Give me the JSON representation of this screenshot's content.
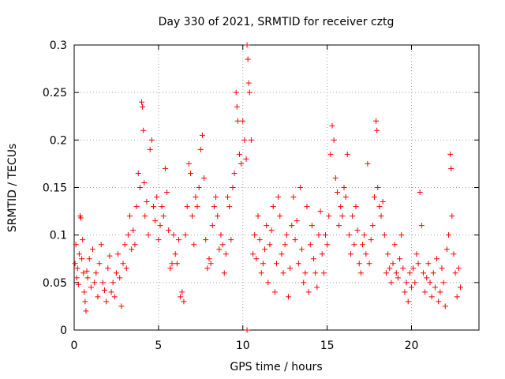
{
  "chart_data": {
    "type": "scatter",
    "title": "Day 330 of 2021, SRMTID for receiver cztg",
    "xlabel": "GPS time / hours",
    "ylabel": "SRMTID / TECUs",
    "xlim": [
      0,
      24
    ],
    "ylim": [
      0,
      0.3
    ],
    "xticks": [
      0,
      5,
      10,
      15,
      20
    ],
    "xtick_labels": [
      "0",
      "5",
      "10",
      "15",
      "20"
    ],
    "yticks": [
      0,
      0.05,
      0.1,
      0.15,
      0.2,
      0.25,
      0.3
    ],
    "ytick_labels": [
      "0",
      "0.05",
      "0.1",
      "0.15",
      "0.2",
      "0.25",
      "0.3"
    ],
    "grid": true,
    "marker": "plus",
    "color": "#ff0000",
    "series": [
      {
        "name": "SRMTID",
        "points": [
          [
            0.05,
            0.07
          ],
          [
            0.1,
            0.09
          ],
          [
            0.15,
            0.055
          ],
          [
            0.2,
            0.065
          ],
          [
            0.25,
            0.048
          ],
          [
            0.3,
            0.08
          ],
          [
            0.35,
            0.12
          ],
          [
            0.4,
            0.118
          ],
          [
            0.45,
            0.075
          ],
          [
            0.5,
            0.095
          ],
          [
            0.55,
            0.06
          ],
          [
            0.6,
            0.04
          ],
          [
            0.65,
            0.03
          ],
          [
            0.7,
            0.02
          ],
          [
            0.75,
            0.062
          ],
          [
            0.8,
            0.055
          ],
          [
            0.9,
            0.075
          ],
          [
            1.0,
            0.045
          ],
          [
            1.1,
            0.085
          ],
          [
            1.2,
            0.05
          ],
          [
            1.3,
            0.06
          ],
          [
            1.4,
            0.035
          ],
          [
            1.5,
            0.07
          ],
          [
            1.6,
            0.09
          ],
          [
            1.7,
            0.05
          ],
          [
            1.8,
            0.042
          ],
          [
            1.9,
            0.03
          ],
          [
            2.0,
            0.065
          ],
          [
            2.1,
            0.078
          ],
          [
            2.2,
            0.04
          ],
          [
            2.3,
            0.05
          ],
          [
            2.4,
            0.035
          ],
          [
            2.5,
            0.06
          ],
          [
            2.6,
            0.08
          ],
          [
            2.7,
            0.055
          ],
          [
            2.8,
            0.025
          ],
          [
            2.9,
            0.07
          ],
          [
            3.0,
            0.09
          ],
          [
            3.1,
            0.065
          ],
          [
            3.2,
            0.1
          ],
          [
            3.3,
            0.12
          ],
          [
            3.4,
            0.085
          ],
          [
            3.5,
            0.105
          ],
          [
            3.6,
            0.09
          ],
          [
            3.7,
            0.13
          ],
          [
            3.8,
            0.165
          ],
          [
            3.9,
            0.15
          ],
          [
            4.0,
            0.24
          ],
          [
            4.05,
            0.235
          ],
          [
            4.1,
            0.21
          ],
          [
            4.15,
            0.155
          ],
          [
            4.2,
            0.12
          ],
          [
            4.3,
            0.135
          ],
          [
            4.4,
            0.1
          ],
          [
            4.5,
            0.19
          ],
          [
            4.6,
            0.2
          ],
          [
            4.7,
            0.13
          ],
          [
            4.8,
            0.115
          ],
          [
            4.9,
            0.14
          ],
          [
            5.0,
            0.095
          ],
          [
            5.1,
            0.11
          ],
          [
            5.2,
            0.13
          ],
          [
            5.3,
            0.12
          ],
          [
            5.4,
            0.17
          ],
          [
            5.5,
            0.145
          ],
          [
            5.6,
            0.105
          ],
          [
            5.7,
            0.065
          ],
          [
            5.8,
            0.07
          ],
          [
            5.9,
            0.1
          ],
          [
            6.0,
            0.08
          ],
          [
            6.1,
            0.07
          ],
          [
            6.2,
            0.095
          ],
          [
            6.3,
            0.035
          ],
          [
            6.4,
            0.04
          ],
          [
            6.5,
            0.03
          ],
          [
            6.6,
            0.1
          ],
          [
            6.7,
            0.13
          ],
          [
            6.8,
            0.175
          ],
          [
            6.9,
            0.165
          ],
          [
            7.0,
            0.12
          ],
          [
            7.1,
            0.09
          ],
          [
            7.2,
            0.14
          ],
          [
            7.3,
            0.13
          ],
          [
            7.4,
            0.15
          ],
          [
            7.5,
            0.19
          ],
          [
            7.6,
            0.205
          ],
          [
            7.7,
            0.16
          ],
          [
            7.8,
            0.095
          ],
          [
            7.9,
            0.065
          ],
          [
            8.0,
            0.075
          ],
          [
            8.1,
            0.07
          ],
          [
            8.2,
            0.11
          ],
          [
            8.3,
            0.13
          ],
          [
            8.4,
            0.14
          ],
          [
            8.5,
            0.12
          ],
          [
            8.6,
            0.085
          ],
          [
            8.7,
            0.1
          ],
          [
            8.8,
            0.09
          ],
          [
            8.9,
            0.06
          ],
          [
            9.0,
            0.08
          ],
          [
            9.1,
            0.14
          ],
          [
            9.2,
            0.13
          ],
          [
            9.3,
            0.095
          ],
          [
            9.4,
            0.15
          ],
          [
            9.5,
            0.165
          ],
          [
            9.6,
            0.25
          ],
          [
            9.65,
            0.235
          ],
          [
            9.7,
            0.22
          ],
          [
            9.8,
            0.185
          ],
          [
            9.9,
            0.175
          ],
          [
            10.0,
            0.22
          ],
          [
            10.1,
            0.2
          ],
          [
            10.2,
            0.18
          ],
          [
            10.25,
            0.3
          ],
          [
            10.3,
            0.285
          ],
          [
            10.35,
            0.26
          ],
          [
            10.4,
            0.25
          ],
          [
            10.5,
            0.2
          ],
          [
            10.6,
            0.08
          ],
          [
            10.7,
            0.1
          ],
          [
            10.8,
            0.075
          ],
          [
            10.9,
            0.12
          ],
          [
            11.0,
            0.095
          ],
          [
            11.1,
            0.06
          ],
          [
            11.2,
            0.07
          ],
          [
            11.3,
            0.085
          ],
          [
            11.4,
            0.11
          ],
          [
            11.5,
            0.05
          ],
          [
            11.6,
            0.09
          ],
          [
            11.7,
            0.105
          ],
          [
            11.8,
            0.13
          ],
          [
            11.9,
            0.04
          ],
          [
            12.0,
            0.07
          ],
          [
            12.1,
            0.14
          ],
          [
            12.2,
            0.12
          ],
          [
            12.3,
            0.08
          ],
          [
            12.4,
            0.06
          ],
          [
            12.5,
            0.09
          ],
          [
            12.6,
            0.1
          ],
          [
            12.7,
            0.035
          ],
          [
            12.8,
            0.065
          ],
          [
            12.9,
            0.11
          ],
          [
            13.0,
            0.14
          ],
          [
            13.1,
            0.095
          ],
          [
            13.2,
            0.115
          ],
          [
            13.3,
            0.07
          ],
          [
            13.4,
            0.15
          ],
          [
            13.5,
            0.085
          ],
          [
            13.6,
            0.05
          ],
          [
            13.7,
            0.06
          ],
          [
            13.8,
            0.13
          ],
          [
            13.9,
            0.04
          ],
          [
            14.0,
            0.09
          ],
          [
            14.1,
            0.11
          ],
          [
            14.2,
            0.075
          ],
          [
            14.3,
            0.06
          ],
          [
            14.4,
            0.045
          ],
          [
            14.5,
            0.1
          ],
          [
            14.6,
            0.125
          ],
          [
            14.7,
            0.08
          ],
          [
            14.8,
            0.06
          ],
          [
            14.9,
            0.1
          ],
          [
            15.0,
            0.09
          ],
          [
            15.1,
            0.12
          ],
          [
            15.2,
            0.185
          ],
          [
            15.3,
            0.215
          ],
          [
            15.4,
            0.2
          ],
          [
            15.5,
            0.16
          ],
          [
            15.6,
            0.145
          ],
          [
            15.7,
            0.11
          ],
          [
            15.8,
            0.13
          ],
          [
            15.9,
            0.12
          ],
          [
            16.0,
            0.15
          ],
          [
            16.1,
            0.14
          ],
          [
            16.2,
            0.185
          ],
          [
            16.3,
            0.1
          ],
          [
            16.4,
            0.08
          ],
          [
            16.5,
            0.12
          ],
          [
            16.6,
            0.09
          ],
          [
            16.7,
            0.13
          ],
          [
            16.8,
            0.105
          ],
          [
            16.9,
            0.07
          ],
          [
            17.0,
            0.06
          ],
          [
            17.1,
            0.09
          ],
          [
            17.2,
            0.1
          ],
          [
            17.3,
            0.08
          ],
          [
            17.4,
            0.175
          ],
          [
            17.5,
            0.07
          ],
          [
            17.6,
            0.095
          ],
          [
            17.7,
            0.11
          ],
          [
            17.8,
            0.14
          ],
          [
            17.9,
            0.22
          ],
          [
            17.95,
            0.21
          ],
          [
            18.0,
            0.15
          ],
          [
            18.1,
            0.13
          ],
          [
            18.2,
            0.12
          ],
          [
            18.3,
            0.135
          ],
          [
            18.4,
            0.1
          ],
          [
            18.5,
            0.06
          ],
          [
            18.6,
            0.08
          ],
          [
            18.7,
            0.065
          ],
          [
            18.8,
            0.05
          ],
          [
            18.9,
            0.07
          ],
          [
            19.0,
            0.09
          ],
          [
            19.1,
            0.06
          ],
          [
            19.2,
            0.055
          ],
          [
            19.3,
            0.075
          ],
          [
            19.4,
            0.1
          ],
          [
            19.5,
            0.065
          ],
          [
            19.6,
            0.04
          ],
          [
            19.7,
            0.05
          ],
          [
            19.8,
            0.03
          ],
          [
            19.9,
            0.06
          ],
          [
            20.0,
            0.045
          ],
          [
            20.1,
            0.065
          ],
          [
            20.2,
            0.05
          ],
          [
            20.3,
            0.08
          ],
          [
            20.4,
            0.07
          ],
          [
            20.5,
            0.145
          ],
          [
            20.6,
            0.11
          ],
          [
            20.7,
            0.06
          ],
          [
            20.8,
            0.04
          ],
          [
            20.9,
            0.055
          ],
          [
            21.0,
            0.07
          ],
          [
            21.1,
            0.05
          ],
          [
            21.2,
            0.035
          ],
          [
            21.3,
            0.06
          ],
          [
            21.4,
            0.045
          ],
          [
            21.5,
            0.075
          ],
          [
            21.6,
            0.03
          ],
          [
            21.7,
            0.04
          ],
          [
            21.8,
            0.065
          ],
          [
            21.9,
            0.05
          ],
          [
            22.0,
            0.025
          ],
          [
            22.1,
            0.085
          ],
          [
            22.2,
            0.1
          ],
          [
            22.3,
            0.185
          ],
          [
            22.35,
            0.17
          ],
          [
            22.4,
            0.12
          ],
          [
            22.5,
            0.08
          ],
          [
            22.6,
            0.06
          ],
          [
            22.7,
            0.035
          ],
          [
            22.8,
            0.065
          ],
          [
            22.9,
            0.045
          ],
          [
            10.25,
            0.0
          ]
        ]
      }
    ]
  }
}
